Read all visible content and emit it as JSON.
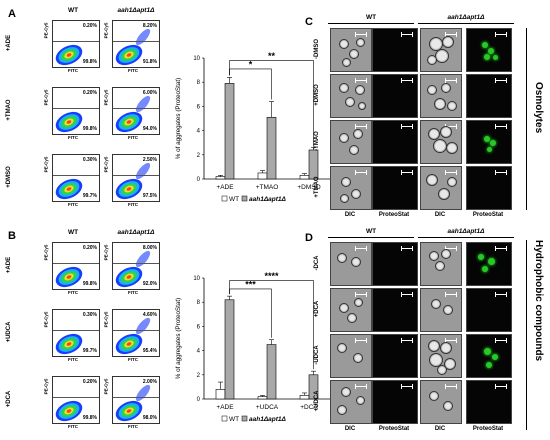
{
  "panels": {
    "A": "A",
    "B": "B",
    "C": "C",
    "D": "D"
  },
  "genotypes": {
    "wt": "WT",
    "mutant": "aah1Δapt1Δ"
  },
  "flow": {
    "axis_x": "FITC",
    "axis_y": "PE-Cy5",
    "A": {
      "rows": [
        {
          "label": "+ADE",
          "wt_top": "0.20%",
          "wt_bot": "99.8%",
          "mut_top": "8.20%",
          "mut_bot": "91.8%"
        },
        {
          "label": "+TMAO",
          "wt_top": "0.20%",
          "wt_bot": "99.8%",
          "mut_top": "6.00%",
          "mut_bot": "94.0%"
        },
        {
          "label": "+DMSO",
          "wt_top": "0.30%",
          "wt_bot": "99.7%",
          "mut_top": "2.50%",
          "mut_bot": "97.5%"
        }
      ]
    },
    "B": {
      "rows": [
        {
          "label": "+ADE",
          "wt_top": "0.20%",
          "wt_bot": "99.8%",
          "mut_top": "8.00%",
          "mut_bot": "92.0%"
        },
        {
          "label": "+UDCA",
          "wt_top": "0.30%",
          "wt_bot": "99.7%",
          "mut_top": "4.60%",
          "mut_bot": "95.4%"
        },
        {
          "label": "+DCA",
          "wt_top": "0.20%",
          "wt_bot": "99.8%",
          "mut_top": "2.00%",
          "mut_bot": "98.0%"
        }
      ]
    }
  },
  "chart_data": [
    {
      "type": "bar",
      "ylabel": "% of aggregates (ProteoStat)",
      "ylim": [
        0,
        10
      ],
      "yticks": [
        "0",
        "2",
        "4",
        "6",
        "8",
        "10"
      ],
      "categories": [
        "+ADE",
        "+TMAO",
        "+DMSO"
      ],
      "series": [
        {
          "name": "WT",
          "color": "#ffffff",
          "values": [
            0.2,
            0.5,
            0.3
          ],
          "errors": [
            0.1,
            0.2,
            0.15
          ]
        },
        {
          "name": "aah1Δapt1Δ",
          "color": "#a8a8a8",
          "values": [
            7.9,
            5.1,
            2.4
          ],
          "errors": [
            0.5,
            1.3,
            0.2
          ]
        }
      ],
      "significance": [
        {
          "from": 1,
          "to": 2,
          "label": "*"
        },
        {
          "from": 1,
          "to": 3,
          "label": "**"
        }
      ],
      "legend": "bottom"
    },
    {
      "type": "bar",
      "ylabel": "% of aggregates (ProteoStat)",
      "ylim": [
        0,
        10
      ],
      "yticks": [
        "0",
        "2",
        "4",
        "6",
        "8",
        "10"
      ],
      "categories": [
        "+ADE",
        "+UDCA",
        "+DCA"
      ],
      "series": [
        {
          "name": "WT",
          "color": "#ffffff",
          "values": [
            0.8,
            0.2,
            0.3
          ],
          "errors": [
            0.6,
            0.1,
            0.2
          ]
        },
        {
          "name": "aah1Δapt1Δ",
          "color": "#a8a8a8",
          "values": [
            8.2,
            4.5,
            2.0
          ],
          "errors": [
            0.3,
            0.4,
            0.3
          ]
        }
      ],
      "significance": [
        {
          "from": 1,
          "to": 2,
          "label": "***"
        },
        {
          "from": 1,
          "to": 3,
          "label": "****"
        }
      ],
      "legend": "bottom"
    }
  ],
  "micro": {
    "C": {
      "rows": [
        "-DMSO",
        "+DMSO",
        "-TMAO",
        "+TMAO"
      ],
      "side_label": "Osmolytes"
    },
    "D": {
      "rows": [
        "-DCA",
        "+DCA",
        "-UDCA",
        "+UDCA"
      ],
      "side_label": "Hydrophobic compounds"
    },
    "col_labels": [
      "DIC",
      "ProteoStat",
      "DIC",
      "ProteoStat"
    ]
  }
}
